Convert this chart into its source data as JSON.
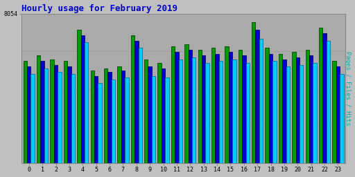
{
  "title": "Hourly usage for February 2019",
  "ylabel_right": "Pages / Files / Hits",
  "ytick_label": "8054",
  "hours": [
    0,
    1,
    2,
    3,
    4,
    5,
    6,
    7,
    8,
    9,
    10,
    11,
    12,
    13,
    14,
    15,
    16,
    17,
    18,
    19,
    20,
    21,
    22,
    23
  ],
  "pages": [
    5500,
    5800,
    5600,
    5500,
    7200,
    5000,
    5100,
    5200,
    6900,
    5600,
    5400,
    6300,
    6400,
    6100,
    6200,
    6300,
    6100,
    7600,
    6200,
    5900,
    6000,
    6100,
    7300,
    5500
  ],
  "files": [
    5200,
    5500,
    5300,
    5200,
    6900,
    4700,
    4900,
    5000,
    6600,
    5200,
    5100,
    6000,
    6100,
    5800,
    5900,
    6000,
    5800,
    7200,
    5900,
    5600,
    5700,
    5800,
    7000,
    5200
  ],
  "hits": [
    4800,
    5100,
    4900,
    4800,
    6500,
    4300,
    4500,
    4600,
    6200,
    4700,
    4600,
    5600,
    5700,
    5400,
    5500,
    5600,
    5400,
    6700,
    5500,
    5200,
    5300,
    5400,
    6600,
    4800
  ],
  "pages_color": "#009900",
  "files_color": "#0000cc",
  "hits_color": "#00ccff",
  "pages_edge": "#003300",
  "files_edge": "#000044",
  "hits_edge": "#006688",
  "bg_color": "#c0c0c0",
  "plot_bg": "#aaaaaa",
  "title_color": "#0000cc",
  "ylabel_color": "#00aaaa",
  "ymax": 8054,
  "ytick_val": 8054,
  "bar_width": 0.28
}
